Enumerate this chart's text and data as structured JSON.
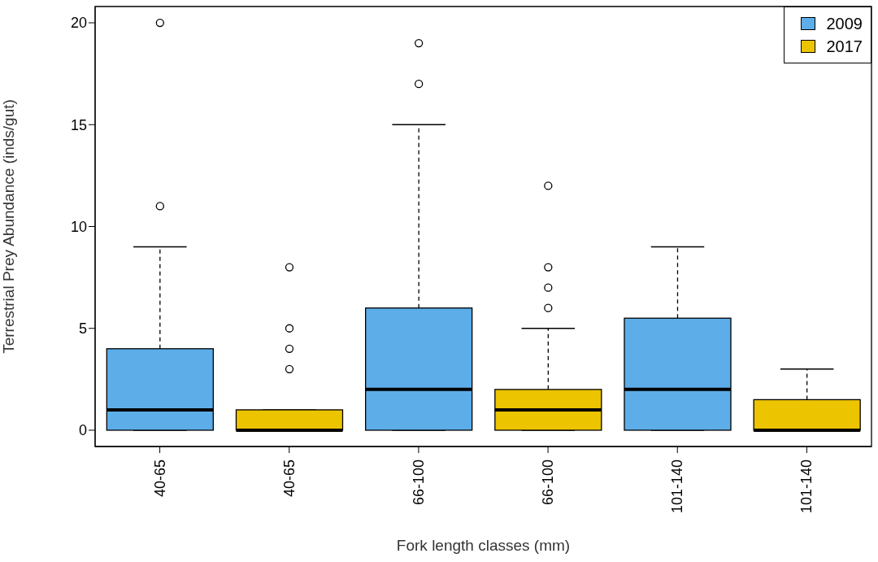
{
  "chart_data": {
    "type": "box",
    "xlabel": "Fork length classes (mm)",
    "ylabel": "Terrestrial Prey Abundance (inds/gut)",
    "categories": [
      "40-65",
      "40-65",
      "66-100",
      "66-100",
      "101-140",
      "101-140"
    ],
    "ylim": [
      -0.8,
      20.8
    ],
    "yticks": [
      0,
      5,
      10,
      15,
      20
    ],
    "legend": "top right",
    "series": [
      {
        "name": "2009",
        "color": "#5dade8",
        "boxes": [
          {
            "low": 0,
            "q1": 0,
            "median": 1,
            "q3": 4,
            "high": 9,
            "outliers": [
              11,
              20
            ]
          },
          null,
          {
            "low": 0,
            "q1": 0,
            "median": 2,
            "q3": 6,
            "high": 15,
            "outliers": [
              17,
              19
            ]
          },
          null,
          {
            "low": 0,
            "q1": 0,
            "median": 2,
            "q3": 5.5,
            "high": 9
          },
          null
        ]
      },
      {
        "name": "2017",
        "color": "#ecc400",
        "boxes": [
          null,
          {
            "low": 0,
            "q1": 0,
            "median": 0,
            "q3": 1,
            "high": 1,
            "outliers": [
              3,
              4,
              5,
              8
            ]
          },
          null,
          {
            "low": 0,
            "q1": 0,
            "median": 1,
            "q3": 2,
            "high": 5,
            "outliers": [
              6,
              7,
              8,
              12
            ]
          },
          null,
          {
            "low": 0,
            "q1": 0,
            "median": 0,
            "q3": 1.5,
            "high": 3
          }
        ]
      }
    ]
  }
}
